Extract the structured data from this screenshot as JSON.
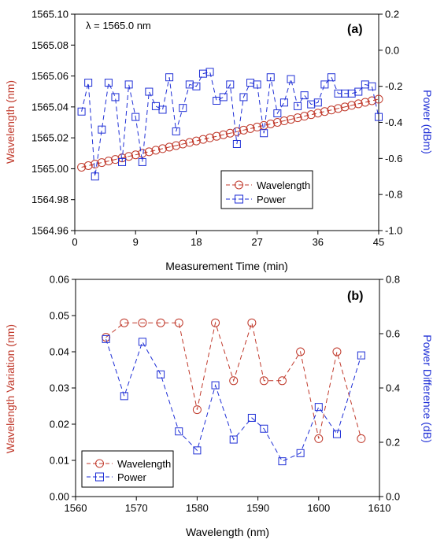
{
  "colors": {
    "wavelength": "#c0392b",
    "power": "#1f2fd6",
    "axis": "#000000"
  },
  "chart_data": [
    {
      "panel_label": "(a)",
      "type": "line",
      "annotation": "λ = 1565.0 nm",
      "xlabel": "Measurement Time (min)",
      "ylabel_left": "Wavelength (nm)",
      "ylabel_right": "Power (dBm)",
      "xlim": [
        0,
        45
      ],
      "ylim_left": [
        1564.96,
        1565.1
      ],
      "ylim_right": [
        -1.0,
        0.2
      ],
      "xticks": [
        0,
        9,
        18,
        27,
        36,
        45
      ],
      "yticks_left": [
        1564.96,
        1564.98,
        1565.0,
        1565.02,
        1565.04,
        1565.06,
        1565.08,
        1565.1
      ],
      "yticks_left_labels": [
        "1564.96",
        "1564.98",
        "1565.00",
        "1565.02",
        "1565.04",
        "1565.06",
        "1565.08",
        "1565.10"
      ],
      "yticks_right": [
        -1.0,
        -0.8,
        -0.6,
        -0.4,
        -0.2,
        0.0,
        0.2
      ],
      "yticks_right_labels": [
        "-1.0",
        "-0.8",
        "-0.6",
        "-0.4",
        "-0.2",
        "0.0",
        "0.2"
      ],
      "legend": {
        "location": "lower-right",
        "entries": [
          "Wavelength",
          "Power"
        ]
      },
      "series": [
        {
          "name": "Wavelength",
          "axis": "left",
          "marker": "circle",
          "line": "dashed",
          "x": [
            1,
            2,
            3,
            4,
            5,
            6,
            7,
            8,
            9,
            10,
            11,
            12,
            13,
            14,
            15,
            16,
            17,
            18,
            19,
            20,
            21,
            22,
            23,
            24,
            25,
            26,
            27,
            28,
            29,
            30,
            31,
            32,
            33,
            34,
            35,
            36,
            37,
            38,
            39,
            40,
            41,
            42,
            43,
            44,
            45
          ],
          "values": [
            1565.001,
            1565.002,
            1565.003,
            1565.004,
            1565.005,
            1565.006,
            1565.007,
            1565.008,
            1565.009,
            1565.01,
            1565.011,
            1565.012,
            1565.013,
            1565.014,
            1565.015,
            1565.016,
            1565.017,
            1565.018,
            1565.019,
            1565.02,
            1565.021,
            1565.022,
            1565.023,
            1565.024,
            1565.025,
            1565.026,
            1565.027,
            1565.028,
            1565.029,
            1565.03,
            1565.031,
            1565.032,
            1565.033,
            1565.034,
            1565.035,
            1565.036,
            1565.037,
            1565.038,
            1565.039,
            1565.04,
            1565.041,
            1565.042,
            1565.043,
            1565.044,
            1565.045
          ]
        },
        {
          "name": "Power",
          "axis": "right",
          "marker": "square",
          "line": "dashed",
          "x": [
            1,
            2,
            3,
            4,
            5,
            6,
            7,
            8,
            9,
            10,
            11,
            12,
            13,
            14,
            15,
            16,
            17,
            18,
            19,
            20,
            21,
            22,
            23,
            24,
            25,
            26,
            27,
            28,
            29,
            30,
            31,
            32,
            33,
            34,
            35,
            36,
            37,
            38,
            39,
            40,
            41,
            42,
            43,
            44,
            45
          ],
          "values": [
            -0.34,
            -0.18,
            -0.7,
            -0.44,
            -0.18,
            -0.26,
            -0.62,
            -0.19,
            -0.37,
            -0.62,
            -0.23,
            -0.31,
            -0.33,
            -0.15,
            -0.45,
            -0.32,
            -0.19,
            -0.2,
            -0.13,
            -0.12,
            -0.28,
            -0.26,
            -0.19,
            -0.52,
            -0.26,
            -0.18,
            -0.19,
            -0.46,
            -0.15,
            -0.35,
            -0.29,
            -0.16,
            -0.31,
            -0.25,
            -0.3,
            -0.29,
            -0.19,
            -0.15,
            -0.24,
            -0.24,
            -0.24,
            -0.23,
            -0.19,
            -0.2,
            -0.37
          ]
        }
      ]
    },
    {
      "panel_label": "(b)",
      "type": "line",
      "xlabel": "Wavelength (nm)",
      "ylabel_left": "Wavelength Variation (nm)",
      "ylabel_right": "Power Difference (dB)",
      "xlim": [
        1560,
        1610
      ],
      "ylim_left": [
        0,
        0.06
      ],
      "ylim_right": [
        0,
        0.8
      ],
      "xticks": [
        1560,
        1570,
        1580,
        1590,
        1600,
        1610
      ],
      "yticks_left": [
        0,
        0.01,
        0.02,
        0.03,
        0.04,
        0.05,
        0.06
      ],
      "yticks_left_labels": [
        "0.00",
        "0.01",
        "0.02",
        "0.03",
        "0.04",
        "0.05",
        "0.06"
      ],
      "yticks_right": [
        0,
        0.2,
        0.4,
        0.6,
        0.8
      ],
      "yticks_right_labels": [
        "0.0",
        "0.2",
        "0.4",
        "0.6",
        "0.8"
      ],
      "legend": {
        "location": "lower-left",
        "entries": [
          "Wavelength",
          "Power"
        ]
      },
      "series": [
        {
          "name": "Wavelength",
          "axis": "left",
          "marker": "circle",
          "line": "dashed",
          "x": [
            1565,
            1568,
            1571,
            1574,
            1577,
            1580,
            1583,
            1586,
            1589,
            1591,
            1594,
            1597,
            1600,
            1603,
            1607
          ],
          "values": [
            0.044,
            0.048,
            0.048,
            0.048,
            0.048,
            0.024,
            0.048,
            0.032,
            0.048,
            0.032,
            0.032,
            0.04,
            0.016,
            0.04,
            0.016
          ]
        },
        {
          "name": "Power",
          "axis": "right",
          "marker": "square",
          "line": "dashed",
          "x": [
            1565,
            1568,
            1571,
            1574,
            1577,
            1580,
            1583,
            1586,
            1589,
            1591,
            1594,
            1597,
            1600,
            1603,
            1607
          ],
          "values": [
            0.58,
            0.37,
            0.57,
            0.45,
            0.24,
            0.17,
            0.41,
            0.21,
            0.29,
            0.25,
            0.13,
            0.16,
            0.33,
            0.23,
            0.52
          ]
        }
      ]
    }
  ]
}
